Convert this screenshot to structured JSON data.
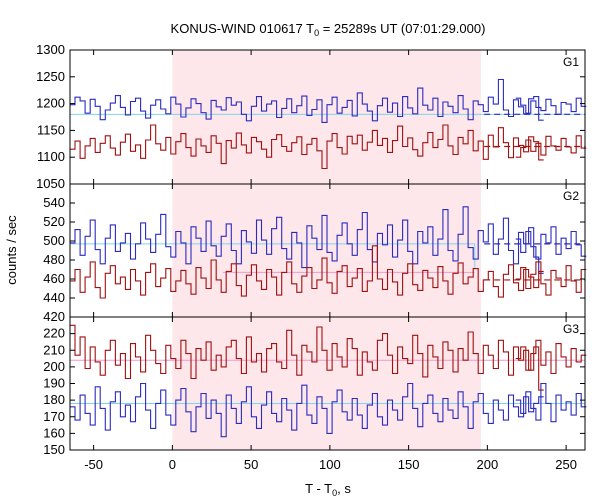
{
  "chart_data": {
    "type": "line",
    "title": "KONUS-WIND 010617 T",
    "title_sub": "0",
    "title_rest": " = 25289s UT (07:01:29.000)",
    "xlabel": "T - T",
    "xlabel_sub": "0",
    "xlabel_rest": ", s",
    "ylabel": "counts / sec",
    "xlim": [
      -65,
      262
    ],
    "xticks": [
      -50,
      0,
      50,
      100,
      150,
      200,
      250
    ],
    "highlight_interval": [
      0,
      196
    ],
    "colors": {
      "blue": "#2b2bc0",
      "red": "#a01010",
      "cyan_bg": "#7fd3ec",
      "pink_bg": "#ee99cc",
      "shade": "#fde7ea"
    },
    "gap_x": [
      198,
      217
    ],
    "panels": [
      {
        "label": "G1",
        "ylim": [
          1050,
          1300
        ],
        "yticks": [
          1050,
          1100,
          1150,
          1200,
          1250,
          1300
        ],
        "series": [
          {
            "color_key": "blue",
            "x_start": -65,
            "step": 3.2,
            "values": [
              1198,
              1212,
              1205,
              1182,
              1208,
              1195,
              1170,
              1188,
              1201,
              1215,
              1193,
              1179,
              1204,
              1210,
              1186,
              1173,
              1197,
              1207,
              1190,
              1181,
              1212,
              1199,
              1175,
              1192,
              1209,
              1200,
              1183,
              1171,
              1206,
              1194,
              1188,
              1211,
              1197,
              1203,
              1180,
              1168,
              1195,
              1213,
              1186,
              1199,
              1205,
              1174,
              1191,
              1209,
              1183,
              1196,
              1214,
              1178,
              1189,
              1207,
              1165,
              1198,
              1212,
              1182,
              1193,
              1206,
              1177,
              1220,
              1199,
              1186,
              1168,
              1196,
              1210,
              1184,
              1201,
              1176,
              1213,
              1192,
              1181,
              1229,
              1197,
              1188,
              1210,
              1176,
              1203,
              1195,
              1183,
              1215,
              1190,
              1170,
              1205,
              1198,
              1185,
              1212,
              1199,
              1245,
              1188,
              1176,
              1207,
              1194,
              1181,
              1209,
              1213,
              1169
            ],
            "tail_x_start": 218,
            "tail_values": [
              1210,
              1197,
              1182,
              1205,
              1193,
              1187,
              1208,
              1196,
              1180,
              1202,
              1199,
              1185,
              1210,
              1195
            ]
          },
          {
            "color_key": "red",
            "x_start": -65,
            "step": 3.2,
            "values": [
              1115,
              1130,
              1098,
              1121,
              1135,
              1109,
              1126,
              1140,
              1117,
              1104,
              1128,
              1143,
              1111,
              1123,
              1098,
              1132,
              1160,
              1125,
              1113,
              1137,
              1106,
              1129,
              1144,
              1118,
              1102,
              1134,
              1121,
              1109,
              1140,
              1126,
              1088,
              1131,
              1117,
              1145,
              1123,
              1108,
              1137,
              1129,
              1115,
              1100,
              1133,
              1142,
              1120,
              1111,
              1127,
              1138,
              1105,
              1124,
              1135,
              1112,
              1079,
              1130,
              1144,
              1118,
              1106,
              1139,
              1125,
              1141,
              1113,
              1128,
              1150,
              1122,
              1135,
              1109,
              1131,
              1158,
              1120,
              1136,
              1114,
              1102,
              1127,
              1146,
              1118,
              1133,
              1160,
              1121,
              1105,
              1137,
              1125,
              1150,
              1112,
              1130,
              1096,
              1141,
              1119,
              1155,
              1127,
              1099,
              1136,
              1122,
              1110,
              1138,
              1129,
              1095
            ],
            "tail_x_start": 218,
            "tail_values": [
              1100,
              1118,
              1132,
              1111,
              1126,
              1104,
              1139,
              1121,
              1113,
              1135,
              1119,
              1108,
              1140,
              1117
            ]
          }
        ],
        "bg_lines": [
          {
            "color_key": "cyan_bg",
            "y": 1180
          },
          {
            "color_key": "red",
            "y": 1120,
            "dashed_after": 198
          },
          {
            "color_key": "blue",
            "y": 1180,
            "dashed_after": 198
          }
        ]
      },
      {
        "label": "G2",
        "ylim": [
          420,
          560
        ],
        "yticks": [
          420,
          440,
          460,
          480,
          500,
          520,
          540
        ],
        "series": [
          {
            "color_key": "blue",
            "x_start": -65,
            "step": 3.2,
            "values": [
              498,
              512,
              485,
              505,
              522,
              491,
              476,
              503,
              517,
              489,
              498,
              508,
              481,
              497,
              519,
              502,
              488,
              507,
              528,
              494,
              483,
              510,
              498,
              476,
              515,
              503,
              489,
              521,
              495,
              484,
              505,
              518,
              490,
              476,
              511,
              499,
              487,
              522,
              501,
              486,
              513,
              525,
              492,
              481,
              509,
              498,
              472,
              516,
              503,
              491,
              527,
              488,
              479,
              506,
              519,
              497,
              485,
              512,
              530,
              491,
              478,
              508,
              496,
              517,
              483,
              501,
              522,
              489,
              476,
              510,
              498,
              515,
              485,
              502,
              533,
              490,
              479,
              507,
              536,
              493,
              481,
              511,
              499,
              518,
              486,
              502,
              524,
              490,
              476,
              509,
              497,
              514,
              483,
              466
            ],
            "tail_x_start": 218,
            "tail_values": [
              502,
              488,
              510,
              494,
              481,
              507,
              498,
              515,
              486,
              503,
              492,
              510,
              496,
              484
            ]
          },
          {
            "color_key": "red",
            "x_start": -65,
            "step": 3.2,
            "values": [
              458,
              470,
              446,
              462,
              478,
              451,
              440,
              466,
              474,
              455,
              462,
              449,
              470,
              458,
              443,
              467,
              476,
              452,
              461,
              471,
              447,
              458,
              469,
              455,
              444,
              472,
              461,
              450,
              480,
              459,
              446,
              468,
              476,
              453,
              442,
              464,
              475,
              458,
              449,
              470,
              462,
              443,
              467,
              478,
              455,
              446,
              463,
              472,
              450,
              459,
              482,
              456,
              445,
              468,
              474,
              452,
              461,
              471,
              447,
              458,
              495,
              460,
              449,
              470,
              457,
              443,
              466,
              476,
              454,
              448,
              469,
              461,
              451,
              473,
              458,
              444,
              466,
              477,
              455,
              462,
              471,
              447,
              459,
              468,
              452,
              441,
              465,
              475,
              456,
              448,
              470,
              462,
              451,
              468
            ],
            "tail_x_start": 218,
            "tail_values": [
              460,
              472,
              450,
              465,
              478,
              455,
              443,
              469,
              461,
              452,
              474,
              458,
              446,
              470
            ]
          }
        ],
        "bg_lines": [
          {
            "color_key": "cyan_bg",
            "y": 497,
            "x1": -65,
            "x2": 192
          },
          {
            "color_key": "pink_bg",
            "y": 467,
            "x1": 32,
            "x2": 192
          },
          {
            "color_key": "blue",
            "y": 497,
            "dashed_after": 198
          },
          {
            "color_key": "red",
            "y": 459,
            "dashed_after": 198
          }
        ]
      },
      {
        "label": "G3",
        "ylim": [
          150,
          230
        ],
        "yticks": [
          150,
          160,
          170,
          180,
          190,
          200,
          210,
          220
        ],
        "series": [
          {
            "color_key": "blue",
            "x_start": -65,
            "step": 3.2,
            "values": [
              176,
              168,
              183,
              172,
              165,
              188,
              175,
              162,
              179,
              185,
              170,
              177,
              167,
              182,
              190,
              174,
              163,
              178,
              186,
              171,
              165,
              180,
              187,
              173,
              161,
              176,
              184,
              169,
              180,
              172,
              158,
              183,
              175,
              166,
              179,
              188,
              170,
              163,
              177,
              185,
              172,
              167,
              181,
              174,
              162,
              178,
              189,
              171,
              166,
              182,
              175,
              160,
              179,
              186,
              173,
              168,
              181,
              171,
              163,
              177,
              184,
              170,
              165,
              180,
              174,
              168,
              182,
              190,
              175,
              164,
              178,
              183,
              172,
              167,
              181,
              174,
              169,
              185,
              176,
              163,
              179,
              184,
              172,
              166,
              180,
              174,
              168,
              183,
              176,
              170,
              182,
              173,
              178,
              182
            ],
            "tail_x_start": 218,
            "tail_values": [
              180,
              172,
              185,
              175,
              168,
              190,
              178,
              167,
              183,
              174,
              179,
              171,
              184,
              176
            ]
          },
          {
            "color_key": "red",
            "x_start": -65,
            "step": 3.2,
            "values": [
              225,
              207,
              218,
              199,
              212,
              203,
              195,
              210,
              216,
              201,
              208,
              193,
              214,
              206,
              197,
              219,
              210,
              202,
              196,
              213,
              205,
              199,
              216,
              208,
              193,
              211,
              204,
              215,
              198,
              207,
              200,
              212,
              216,
              205,
              196,
              218,
              203,
              208,
              197,
              211,
              214,
              203,
              199,
              222,
              207,
              195,
              213,
              209,
              203,
              224,
              210,
              198,
              214,
              206,
              200,
              217,
              211,
              195,
              209,
              203,
              198,
              216,
              220,
              207,
              196,
              212,
              205,
              202,
              219,
              208,
              194,
              213,
              206,
              199,
              215,
              210,
              197,
              211,
              204,
              221,
              208,
              196,
              213,
              207,
              199,
              216,
              209,
              195,
              212,
              204,
              210,
              198,
              212,
              186
            ],
            "tail_x_start": 218,
            "tail_values": [
              205,
              212,
              198,
              208,
              216,
              201,
              209,
              196,
              214,
              206,
              200,
              211,
              203,
              207
            ]
          }
        ],
        "bg_lines": [
          {
            "color_key": "pink_bg",
            "y": 204,
            "x1": -65,
            "x2": 262
          },
          {
            "color_key": "cyan_bg",
            "y": 178,
            "x1": -65,
            "x2": 262
          }
        ]
      }
    ]
  }
}
